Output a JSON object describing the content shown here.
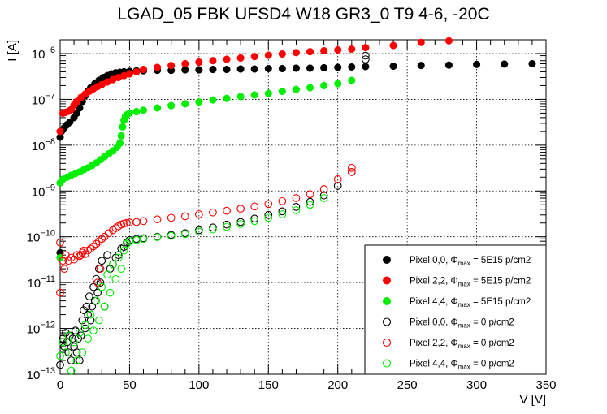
{
  "chart_data": {
    "type": "scatter",
    "title": "LGAD_05 FBK UFSD4 W18 GR3_0 T9 4-6, -20C",
    "xlabel": "V [V]",
    "ylabel": "I [A]",
    "xlim": [
      0,
      350
    ],
    "ylim": [
      1e-13,
      2e-06
    ],
    "yscale": "log",
    "grid": true,
    "legend_position": "bottom-right",
    "x_ticks": [
      {
        "value": 0,
        "label": "0"
      },
      {
        "value": 50,
        "label": "50"
      },
      {
        "value": 100,
        "label": "100"
      },
      {
        "value": 150,
        "label": "150"
      },
      {
        "value": 200,
        "label": "200"
      },
      {
        "value": 250,
        "label": "250"
      },
      {
        "value": 300,
        "label": "300"
      },
      {
        "value": 350,
        "label": "350"
      }
    ],
    "y_ticks": [
      {
        "value": 1e-13,
        "base": "10",
        "exp": "−13"
      },
      {
        "value": 1e-12,
        "base": "10",
        "exp": "−12"
      },
      {
        "value": 1e-11,
        "base": "10",
        "exp": "−11"
      },
      {
        "value": 1e-10,
        "base": "10",
        "exp": "−10"
      },
      {
        "value": 1e-09,
        "base": "10",
        "exp": "−9"
      },
      {
        "value": 1e-08,
        "base": "10",
        "exp": "−8"
      },
      {
        "value": 1e-07,
        "base": "10",
        "exp": "−7"
      },
      {
        "value": 1e-06,
        "base": "10",
        "exp": "−6"
      }
    ],
    "series": [
      {
        "name": "Pixel 0,0, Φmax = 5E15 p/cm2",
        "legend_prefix": "Pixel 0,0,",
        "legend_value": "= 5E15 p/cm2",
        "color": "#000000",
        "filled": true,
        "points": [
          [
            0,
            4.5e-11
          ],
          [
            0,
            1.5e-08
          ],
          [
            1,
            2e-08
          ],
          [
            3,
            2.4e-08
          ],
          [
            5,
            2.8e-08
          ],
          [
            7,
            3.2e-08
          ],
          [
            10,
            4e-08
          ],
          [
            12,
            5e-08
          ],
          [
            14,
            6.5e-08
          ],
          [
            16,
            9e-08
          ],
          [
            18,
            1.2e-07
          ],
          [
            20,
            1.5e-07
          ],
          [
            22,
            1.8e-07
          ],
          [
            25,
            2.2e-07
          ],
          [
            28,
            2.6e-07
          ],
          [
            31,
            3e-07
          ],
          [
            34,
            3.3e-07
          ],
          [
            37,
            3.6e-07
          ],
          [
            40,
            3.8e-07
          ],
          [
            43,
            3.9e-07
          ],
          [
            46,
            4e-07
          ],
          [
            50,
            4.1e-07
          ],
          [
            55,
            4.2e-07
          ],
          [
            60,
            4.2e-07
          ],
          [
            70,
            4.3e-07
          ],
          [
            80,
            4.3e-07
          ],
          [
            90,
            4.4e-07
          ],
          [
            100,
            4.4e-07
          ],
          [
            110,
            4.5e-07
          ],
          [
            120,
            4.5e-07
          ],
          [
            130,
            4.6e-07
          ],
          [
            140,
            4.6e-07
          ],
          [
            150,
            4.7e-07
          ],
          [
            160,
            4.7e-07
          ],
          [
            170,
            4.8e-07
          ],
          [
            180,
            4.8e-07
          ],
          [
            190,
            4.9e-07
          ],
          [
            200,
            5e-07
          ],
          [
            210,
            5.1e-07
          ],
          [
            220,
            5.2e-07
          ],
          [
            240,
            5.3e-07
          ],
          [
            260,
            5.5e-07
          ],
          [
            280,
            5.6e-07
          ],
          [
            300,
            5.8e-07
          ],
          [
            320,
            5.9e-07
          ],
          [
            340,
            6e-07
          ]
        ]
      },
      {
        "name": "Pixel 2,2, Φmax = 5E15 p/cm2",
        "legend_prefix": "Pixel 2,2,",
        "legend_value": "= 5E15 p/cm2",
        "color": "#ff0000",
        "filled": true,
        "points": [
          [
            0,
            2e-08
          ],
          [
            2,
            5e-08
          ],
          [
            4,
            5.2e-08
          ],
          [
            6,
            5.5e-08
          ],
          [
            8,
            6e-08
          ],
          [
            10,
            7.5e-08
          ],
          [
            12,
            9e-08
          ],
          [
            15,
            1.1e-07
          ],
          [
            18,
            1.3e-07
          ],
          [
            21,
            1.5e-07
          ],
          [
            24,
            1.7e-07
          ],
          [
            27,
            1.9e-07
          ],
          [
            30,
            2.1e-07
          ],
          [
            34,
            2.4e-07
          ],
          [
            38,
            2.7e-07
          ],
          [
            42,
            3e-07
          ],
          [
            46,
            3.3e-07
          ],
          [
            50,
            3.6e-07
          ],
          [
            55,
            4e-07
          ],
          [
            60,
            4.5e-07
          ],
          [
            70,
            5e-07
          ],
          [
            80,
            5.5e-07
          ],
          [
            90,
            6e-07
          ],
          [
            100,
            6.5e-07
          ],
          [
            110,
            7e-07
          ],
          [
            120,
            7.5e-07
          ],
          [
            130,
            8e-07
          ],
          [
            140,
            8.6e-07
          ],
          [
            150,
            9.2e-07
          ],
          [
            160,
            9.8e-07
          ],
          [
            170,
            1.05e-06
          ],
          [
            180,
            1.1e-06
          ],
          [
            190,
            1.15e-06
          ],
          [
            200,
            1.2e-06
          ],
          [
            210,
            1.25e-06
          ],
          [
            220,
            1.35e-06
          ],
          [
            240,
            1.5e-06
          ],
          [
            260,
            1.75e-06
          ],
          [
            280,
            1.9e-06
          ]
        ]
      },
      {
        "name": "Pixel 4,4, Φmax = 5E15 p/cm2",
        "legend_prefix": "Pixel 4,4,",
        "legend_value": "= 5E15 p/cm2",
        "color": "#00ee00",
        "filled": true,
        "points": [
          [
            0,
            3.5e-11
          ],
          [
            0,
            1.5e-09
          ],
          [
            2,
            1.8e-09
          ],
          [
            5,
            2e-09
          ],
          [
            8,
            2.2e-09
          ],
          [
            11,
            2.4e-09
          ],
          [
            14,
            2.6e-09
          ],
          [
            17,
            2.9e-09
          ],
          [
            20,
            3.2e-09
          ],
          [
            23,
            3.6e-09
          ],
          [
            26,
            4.1e-09
          ],
          [
            29,
            4.8e-09
          ],
          [
            32,
            5.6e-09
          ],
          [
            35,
            6.5e-09
          ],
          [
            38,
            7.5e-09
          ],
          [
            41,
            9e-09
          ],
          [
            43,
            1.1e-08
          ],
          [
            44,
            1.6e-08
          ],
          [
            45,
            2.5e-08
          ],
          [
            46,
            3.5e-08
          ],
          [
            47,
            4.2e-08
          ],
          [
            48,
            4.6e-08
          ],
          [
            50,
            5e-08
          ],
          [
            55,
            5.4e-08
          ],
          [
            60,
            5.8e-08
          ],
          [
            70,
            6.5e-08
          ],
          [
            80,
            7.3e-08
          ],
          [
            90,
            8e-08
          ],
          [
            100,
            8.8e-08
          ],
          [
            110,
            9.7e-08
          ],
          [
            120,
            1.05e-07
          ],
          [
            130,
            1.15e-07
          ],
          [
            140,
            1.25e-07
          ],
          [
            150,
            1.35e-07
          ],
          [
            160,
            1.5e-07
          ],
          [
            170,
            1.65e-07
          ],
          [
            180,
            1.8e-07
          ],
          [
            190,
            2e-07
          ],
          [
            200,
            2.2e-07
          ],
          [
            210,
            2.6e-07
          ]
        ]
      },
      {
        "name": "Pixel 0,0, Φmax = 0 p/cm2",
        "legend_prefix": "Pixel 0,0,",
        "legend_value": "= 0 p/cm2",
        "color": "#000000",
        "filled": false,
        "points": [
          [
            0,
            1.6e-13
          ],
          [
            2,
            6e-13
          ],
          [
            3,
            4e-13
          ],
          [
            4,
            8e-13
          ],
          [
            5,
            5e-13
          ],
          [
            6,
            3e-13
          ],
          [
            7,
            7e-13
          ],
          [
            8,
            2e-13
          ],
          [
            9,
            6e-13
          ],
          [
            10,
            4e-13
          ],
          [
            11,
            9e-13
          ],
          [
            12,
            3e-13
          ],
          [
            13,
            6e-13
          ],
          [
            14,
            2e-13
          ],
          [
            15,
            7e-13
          ],
          [
            16,
            1.5e-12
          ],
          [
            17,
            2.5e-12
          ],
          [
            18,
            1e-12
          ],
          [
            19,
            3e-12
          ],
          [
            20,
            2e-12
          ],
          [
            21,
            5e-12
          ],
          [
            22,
            1.5e-12
          ],
          [
            23,
            3e-12
          ],
          [
            24,
            8e-12
          ],
          [
            25,
            4e-12
          ],
          [
            26,
            1.2e-11
          ],
          [
            27,
            6e-12
          ],
          [
            28,
            2e-11
          ],
          [
            29,
            1e-11
          ],
          [
            30,
            3e-11
          ],
          [
            32,
            3e-12
          ],
          [
            34,
            4e-11
          ],
          [
            36,
            2e-11
          ],
          [
            38,
            2.5e-11
          ],
          [
            40,
            3.5e-11
          ],
          [
            42,
            4e-11
          ],
          [
            44,
            5.5e-11
          ],
          [
            46,
            6e-11
          ],
          [
            48,
            7.5e-11
          ],
          [
            50,
            8.5e-11
          ],
          [
            55,
            9e-11
          ],
          [
            60,
            9.3e-11
          ],
          [
            70,
            1e-10
          ],
          [
            80,
            1.1e-10
          ],
          [
            90,
            1.2e-10
          ],
          [
            100,
            1.4e-10
          ],
          [
            110,
            1.6e-10
          ],
          [
            120,
            1.85e-10
          ],
          [
            130,
            2.1e-10
          ],
          [
            140,
            2.5e-10
          ],
          [
            150,
            3e-10
          ],
          [
            160,
            3.6e-10
          ],
          [
            170,
            4.5e-10
          ],
          [
            180,
            5.8e-10
          ],
          [
            190,
            8e-10
          ],
          [
            200,
            1.3e-09
          ],
          [
            210,
            2.6e-09
          ],
          [
            220,
            7.5e-07
          ],
          [
            220,
            9e-07
          ]
        ]
      },
      {
        "name": "Pixel 2,2, Φmax = 0 p/cm2",
        "legend_prefix": "Pixel 2,2,",
        "legend_value": "= 0 p/cm2",
        "color": "#ff0000",
        "filled": false,
        "points": [
          [
            0,
            7.5e-11
          ],
          [
            0,
            6e-12
          ],
          [
            2,
            3e-11
          ],
          [
            3,
            2e-11
          ],
          [
            4,
            4e-11
          ],
          [
            6,
            3e-11
          ],
          [
            8,
            3.5e-11
          ],
          [
            10,
            3.2e-11
          ],
          [
            12,
            4e-11
          ],
          [
            14,
            3.8e-11
          ],
          [
            16,
            4.5e-11
          ],
          [
            18,
            4.2e-11
          ],
          [
            20,
            5e-11
          ],
          [
            22,
            5.5e-11
          ],
          [
            24,
            6.2e-11
          ],
          [
            26,
            7e-11
          ],
          [
            28,
            8e-11
          ],
          [
            30,
            9e-11
          ],
          [
            32,
            1e-10
          ],
          [
            35,
            1.2e-10
          ],
          [
            38,
            1.4e-10
          ],
          [
            40,
            1.55e-10
          ],
          [
            42,
            1.7e-10
          ],
          [
            44,
            1.85e-10
          ],
          [
            46,
            1.95e-10
          ],
          [
            48,
            2e-10
          ],
          [
            50,
            2.05e-10
          ],
          [
            55,
            2.1e-10
          ],
          [
            60,
            2.2e-10
          ],
          [
            70,
            2.4e-10
          ],
          [
            80,
            2.6e-10
          ],
          [
            90,
            2.8e-10
          ],
          [
            100,
            3.1e-10
          ],
          [
            110,
            3.4e-10
          ],
          [
            120,
            3.7e-10
          ],
          [
            130,
            4.1e-10
          ],
          [
            140,
            4.6e-10
          ],
          [
            150,
            5.2e-10
          ],
          [
            160,
            6e-10
          ],
          [
            170,
            7e-10
          ],
          [
            180,
            8.5e-10
          ],
          [
            190,
            1.1e-09
          ],
          [
            200,
            1.8e-09
          ],
          [
            210,
            3.2e-09
          ],
          [
            210,
            2.6e-09
          ],
          [
            15,
            4e-11
          ],
          [
            17,
            5e-11
          ],
          [
            27,
            1e-11
          ],
          [
            29,
            2e-11
          ]
        ]
      },
      {
        "name": "Pixel 4,4, Φmax = 0 p/cm2",
        "legend_prefix": "Pixel 4,4,",
        "legend_value": "= 0 p/cm2",
        "color": "#00ee00",
        "filled": false,
        "points": [
          [
            0,
            2.5e-13
          ],
          [
            2,
            5e-13
          ],
          [
            4,
            3e-13
          ],
          [
            6,
            7e-13
          ],
          [
            8,
            1.2e-13
          ],
          [
            10,
            5e-13
          ],
          [
            12,
            2e-13
          ],
          [
            14,
            8e-13
          ],
          [
            16,
            3e-13
          ],
          [
            18,
            1.2e-12
          ],
          [
            20,
            6e-13
          ],
          [
            22,
            2e-12
          ],
          [
            24,
            9e-13
          ],
          [
            26,
            4e-12
          ],
          [
            28,
            1.5e-12
          ],
          [
            30,
            8e-12
          ],
          [
            32,
            3e-12
          ],
          [
            34,
            1.5e-11
          ],
          [
            36,
            6e-12
          ],
          [
            38,
            2.5e-11
          ],
          [
            40,
            1.2e-11
          ],
          [
            42,
            3.5e-11
          ],
          [
            44,
            2e-11
          ],
          [
            46,
            5e-11
          ],
          [
            48,
            7e-11
          ],
          [
            50,
            8e-11
          ],
          [
            55,
            8.5e-11
          ],
          [
            60,
            9e-11
          ],
          [
            70,
            9.8e-11
          ],
          [
            80,
            1.05e-10
          ],
          [
            90,
            1.15e-10
          ],
          [
            100,
            1.3e-10
          ],
          [
            110,
            1.45e-10
          ],
          [
            120,
            1.65e-10
          ],
          [
            130,
            1.9e-10
          ],
          [
            140,
            2.2e-10
          ],
          [
            150,
            2.6e-10
          ],
          [
            160,
            3.1e-10
          ],
          [
            170,
            3.8e-10
          ],
          [
            180,
            5e-10
          ],
          [
            190,
            7e-10
          ]
        ]
      }
    ]
  }
}
